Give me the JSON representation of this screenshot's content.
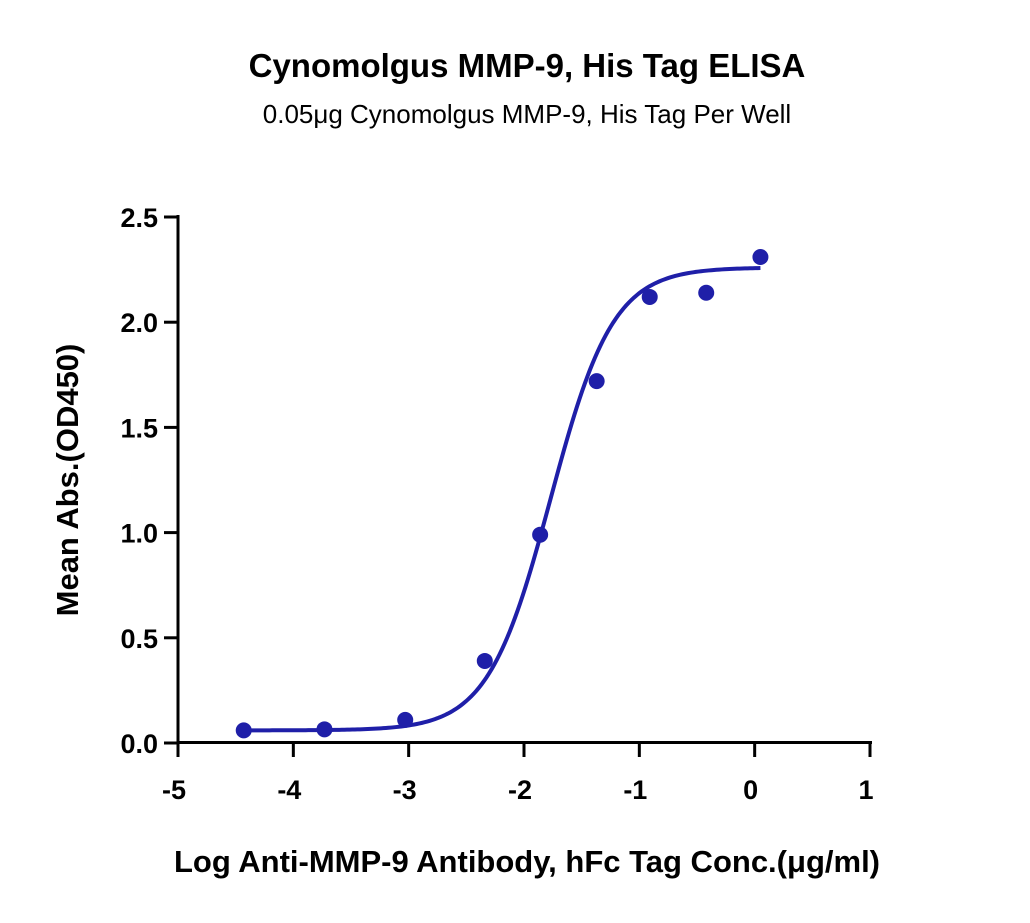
{
  "chart_data": {
    "type": "scatter",
    "title": "Cynomolgus MMP-9, His Tag ELISA",
    "subtitle": "0.05μg Cynomolgus MMP-9, His Tag Per Well",
    "xlabel": "Log Anti-MMP-9 Antibody, hFc Tag Conc.(μg/ml)",
    "ylabel": "Mean Abs.(OD450)",
    "xlim": [
      -5,
      1
    ],
    "ylim": [
      0,
      2.5
    ],
    "x_ticks": [
      "-5",
      "-4",
      "-3",
      "-2",
      "-1",
      "0",
      "1"
    ],
    "y_ticks": [
      "0.0",
      "0.5",
      "1.0",
      "1.5",
      "2.0",
      "2.5"
    ],
    "grid": false,
    "colors": {
      "series": "#1f1fa8",
      "axis": "#000000"
    },
    "series": [
      {
        "points": [
          {
            "x": -4.43,
            "y": 0.06
          },
          {
            "x": -3.73,
            "y": 0.065
          },
          {
            "x": -3.03,
            "y": 0.11
          },
          {
            "x": -2.34,
            "y": 0.39
          },
          {
            "x": -1.86,
            "y": 0.99
          },
          {
            "x": -1.37,
            "y": 1.72
          },
          {
            "x": -0.91,
            "y": 2.12
          },
          {
            "x": -0.42,
            "y": 2.14
          },
          {
            "x": 0.05,
            "y": 2.31
          }
        ],
        "fit": {
          "model": "4PL",
          "bottom": 0.06,
          "top": 2.26,
          "logEC50": -1.77,
          "hill": 1.6,
          "x_range": [
            -4.43,
            0.05
          ]
        }
      }
    ]
  }
}
